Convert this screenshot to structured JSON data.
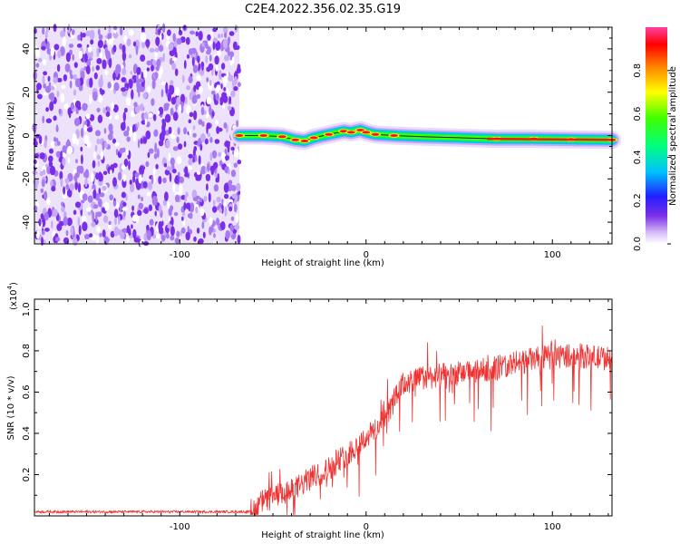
{
  "title": "C2E4.2022.356.02.35.G19",
  "colors": {
    "snr_line": "#ee3333",
    "noise_purple": "#7a2ee8",
    "spectrum_rainbow": [
      "#ffffff",
      "#d8c8f8",
      "#7a2ee8",
      "#2020ff",
      "#00c0ff",
      "#00ff80",
      "#40ff00",
      "#ffff00",
      "#ff8000",
      "#ff0000",
      "#ff40a0"
    ]
  },
  "chart_data": [
    {
      "type": "heatmap",
      "xlabel": "Height of straight line (km)",
      "ylabel": "Frequency (Hz)",
      "xlim": [
        -178,
        132
      ],
      "ylim": [
        -50,
        50
      ],
      "xticks": [
        -100,
        0,
        100
      ],
      "yticks": [
        -40,
        -20,
        0,
        20,
        40
      ],
      "noise_region_x": [
        -178,
        -68
      ],
      "signal_band_center_hz": [
        [
          -68,
          0
        ],
        [
          -55,
          0
        ],
        [
          -45,
          -0.5
        ],
        [
          -38,
          -2
        ],
        [
          -33,
          -2.5
        ],
        [
          -28,
          -1
        ],
        [
          -20,
          0.5
        ],
        [
          -12,
          2
        ],
        [
          -8,
          1.5
        ],
        [
          -3,
          2.5
        ],
        [
          0,
          1.5
        ],
        [
          5,
          0.5
        ],
        [
          15,
          0
        ],
        [
          30,
          -0.5
        ],
        [
          50,
          -1
        ],
        [
          70,
          -1.5
        ],
        [
          90,
          -1.5
        ],
        [
          110,
          -1.8
        ],
        [
          132,
          -2
        ]
      ],
      "colorbar": {
        "label": "Normalized spectral amplitude",
        "range": [
          0.0,
          1.0
        ],
        "ticks": [
          0.0,
          0.2,
          0.4,
          0.6,
          0.8
        ]
      }
    },
    {
      "type": "line",
      "xlabel": "Height of straight line (km)",
      "ylabel": "SNR (10 * v/v)",
      "exponent_label": "(x10",
      "exponent_power": "4",
      "xlim": [
        -178,
        132
      ],
      "ylim": [
        0,
        1.05
      ],
      "xticks": [
        -100,
        0,
        100
      ],
      "yticks": [
        0.2,
        0.4,
        0.6,
        0.8,
        1.0
      ],
      "series": [
        {
          "x": [
            -178,
            -140,
            -100,
            -80,
            -62,
            -58,
            -50,
            -40,
            -30,
            -20,
            -10,
            0,
            10,
            15,
            20,
            30,
            40,
            50,
            60,
            70,
            80,
            90,
            100,
            110,
            120,
            132
          ],
          "y": [
            0.02,
            0.02,
            0.02,
            0.02,
            0.02,
            0.06,
            0.09,
            0.12,
            0.18,
            0.23,
            0.3,
            0.38,
            0.46,
            0.56,
            0.64,
            0.67,
            0.68,
            0.69,
            0.7,
            0.72,
            0.74,
            0.76,
            0.77,
            0.78,
            0.77,
            0.76
          ]
        }
      ]
    }
  ]
}
